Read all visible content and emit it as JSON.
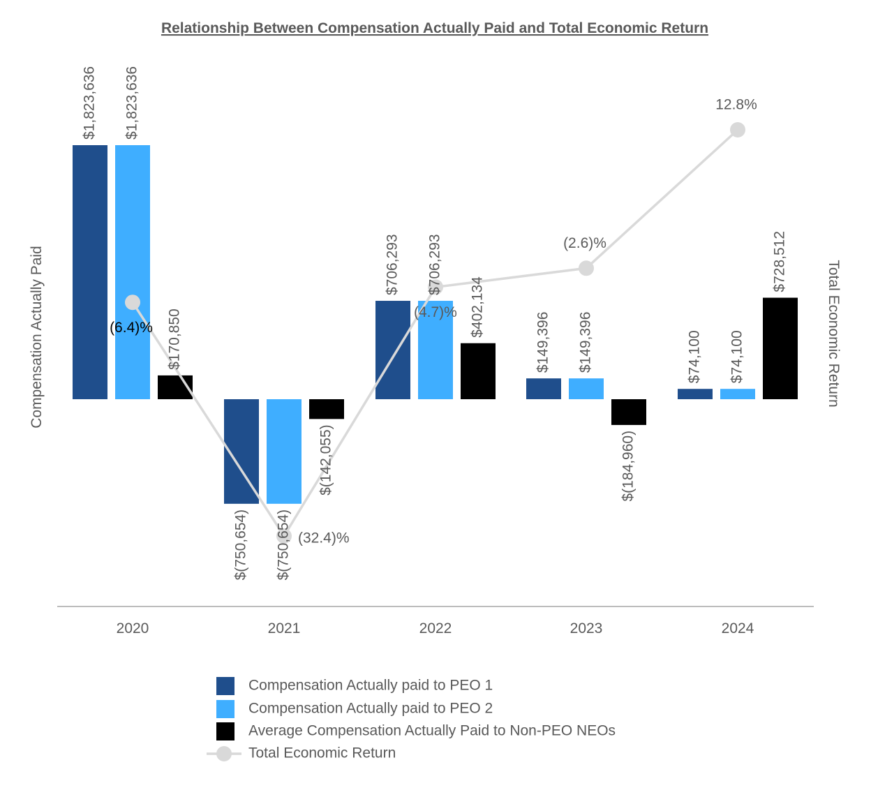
{
  "chart_data": {
    "type": "bar",
    "title": "Relationship Between Compensation Actually Paid and Total Economic Return",
    "ylabel": "Compensation Actually Paid",
    "y2label": "Total Economic Return",
    "categories": [
      "2020",
      "2021",
      "2022",
      "2023",
      "2024"
    ],
    "series": [
      {
        "name": "Compensation Actually paid to PEO 1",
        "color": "#1F4E8C",
        "values": [
          1823636,
          -750654,
          706293,
          149396,
          74100
        ],
        "labels": [
          "$1,823,636",
          "$(750,654)",
          "$706,293",
          "$149,396",
          "$74,100"
        ]
      },
      {
        "name": "Compensation Actually paid to PEO 2",
        "color": "#3FAEFF",
        "values": [
          1823636,
          -750654,
          706293,
          149396,
          74100
        ],
        "labels": [
          "$1,823,636",
          "$(750,654)",
          "$706,293",
          "$149,396",
          "$74,100"
        ]
      },
      {
        "name": "Average Compensation Actually Paid to Non-PEO NEOs",
        "color": "#000000",
        "values": [
          170850,
          -142055,
          402134,
          -184960,
          728512
        ],
        "labels": [
          "$170,850",
          "$(142,055)",
          "$402,134",
          "$(184,960)",
          "$728,512"
        ]
      }
    ],
    "line": {
      "name": "Total Economic Return",
      "color": "#D9D9D9",
      "values": [
        -6.4,
        -32.4,
        -4.7,
        -2.6,
        12.8
      ],
      "labels": [
        "(6.4)%",
        "(32.4)%",
        "(4.7)%",
        "(2.6)%",
        "12.8%"
      ]
    },
    "ylim": [
      -1500000,
      1823636
    ],
    "y2lim": [
      -36,
      15
    ],
    "legend": "bottom"
  }
}
